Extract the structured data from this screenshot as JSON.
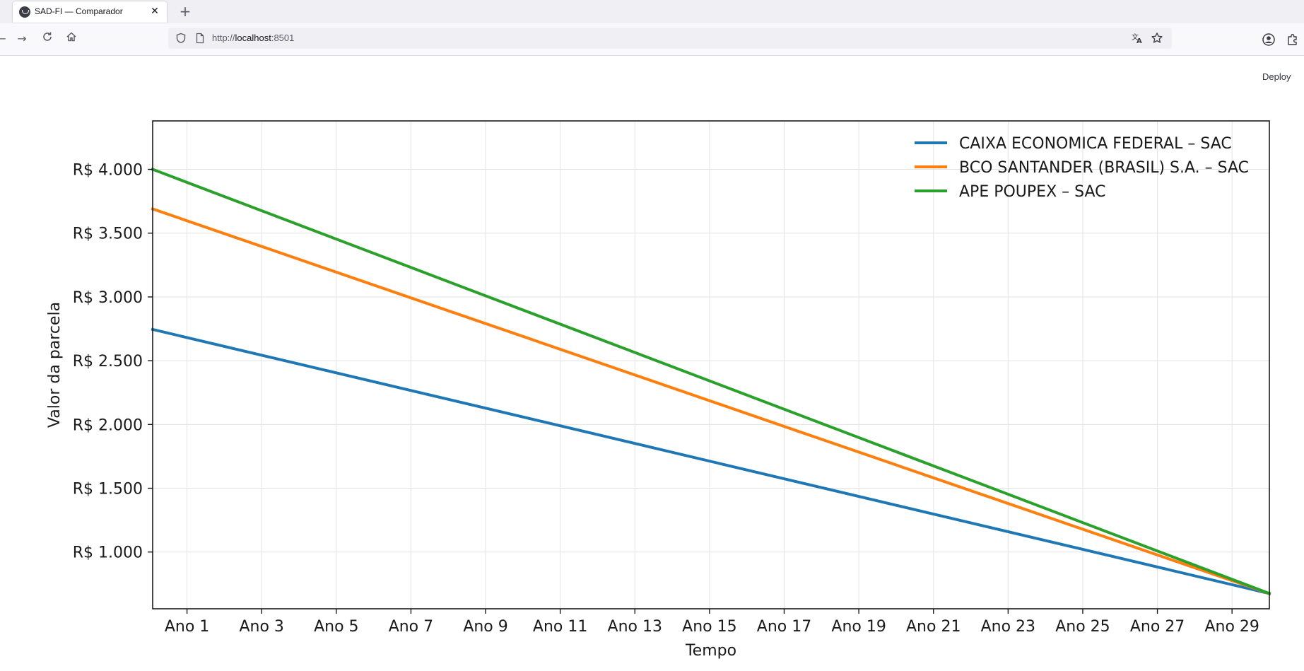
{
  "browser": {
    "tab_title": "SAD-FI — Comparador",
    "url_prefix": "http://",
    "url_host": "localhost",
    "url_port": ":8501"
  },
  "app": {
    "deploy_label": "Deploy"
  },
  "colors": {
    "series_1": "#1f77b4",
    "series_2": "#ff7f0e",
    "series_3": "#2ca02c"
  },
  "chart_data": {
    "type": "line",
    "title": "",
    "xlabel": "Tempo",
    "ylabel": "Valor da parcela",
    "x_tick_labels": [
      "Ano 1",
      "Ano 3",
      "Ano 5",
      "Ano 7",
      "Ano 9",
      "Ano 11",
      "Ano 13",
      "Ano 15",
      "Ano 17",
      "Ano 19",
      "Ano 21",
      "Ano 23",
      "Ano 25",
      "Ano 27",
      "Ano 29"
    ],
    "y_tick_labels": [
      "R$ 1.000",
      "R$ 1.500",
      "R$ 2.000",
      "R$ 2.500",
      "R$ 3.000",
      "R$ 3.500",
      "R$ 4.000"
    ],
    "y_ticks": [
      1000,
      1500,
      2000,
      2500,
      3000,
      3500,
      4000
    ],
    "xlim": [
      0.08,
      30.0
    ],
    "ylim": [
      555,
      4380
    ],
    "grid": true,
    "legend_position": "top-right",
    "series": [
      {
        "name": "CAIXA ECONOMICA FEDERAL – SAC",
        "color": "#1f77b4",
        "x": [
          0.08,
          30.0
        ],
        "y": [
          2745,
          675
        ]
      },
      {
        "name": "BCO SANTANDER (BRASIL) S.A. – SAC",
        "color": "#ff7f0e",
        "x": [
          0.08,
          30.0
        ],
        "y": [
          3690,
          675
        ]
      },
      {
        "name": "APE POUPEX – SAC",
        "color": "#2ca02c",
        "x": [
          0.08,
          30.0
        ],
        "y": [
          4000,
          675
        ]
      }
    ]
  }
}
